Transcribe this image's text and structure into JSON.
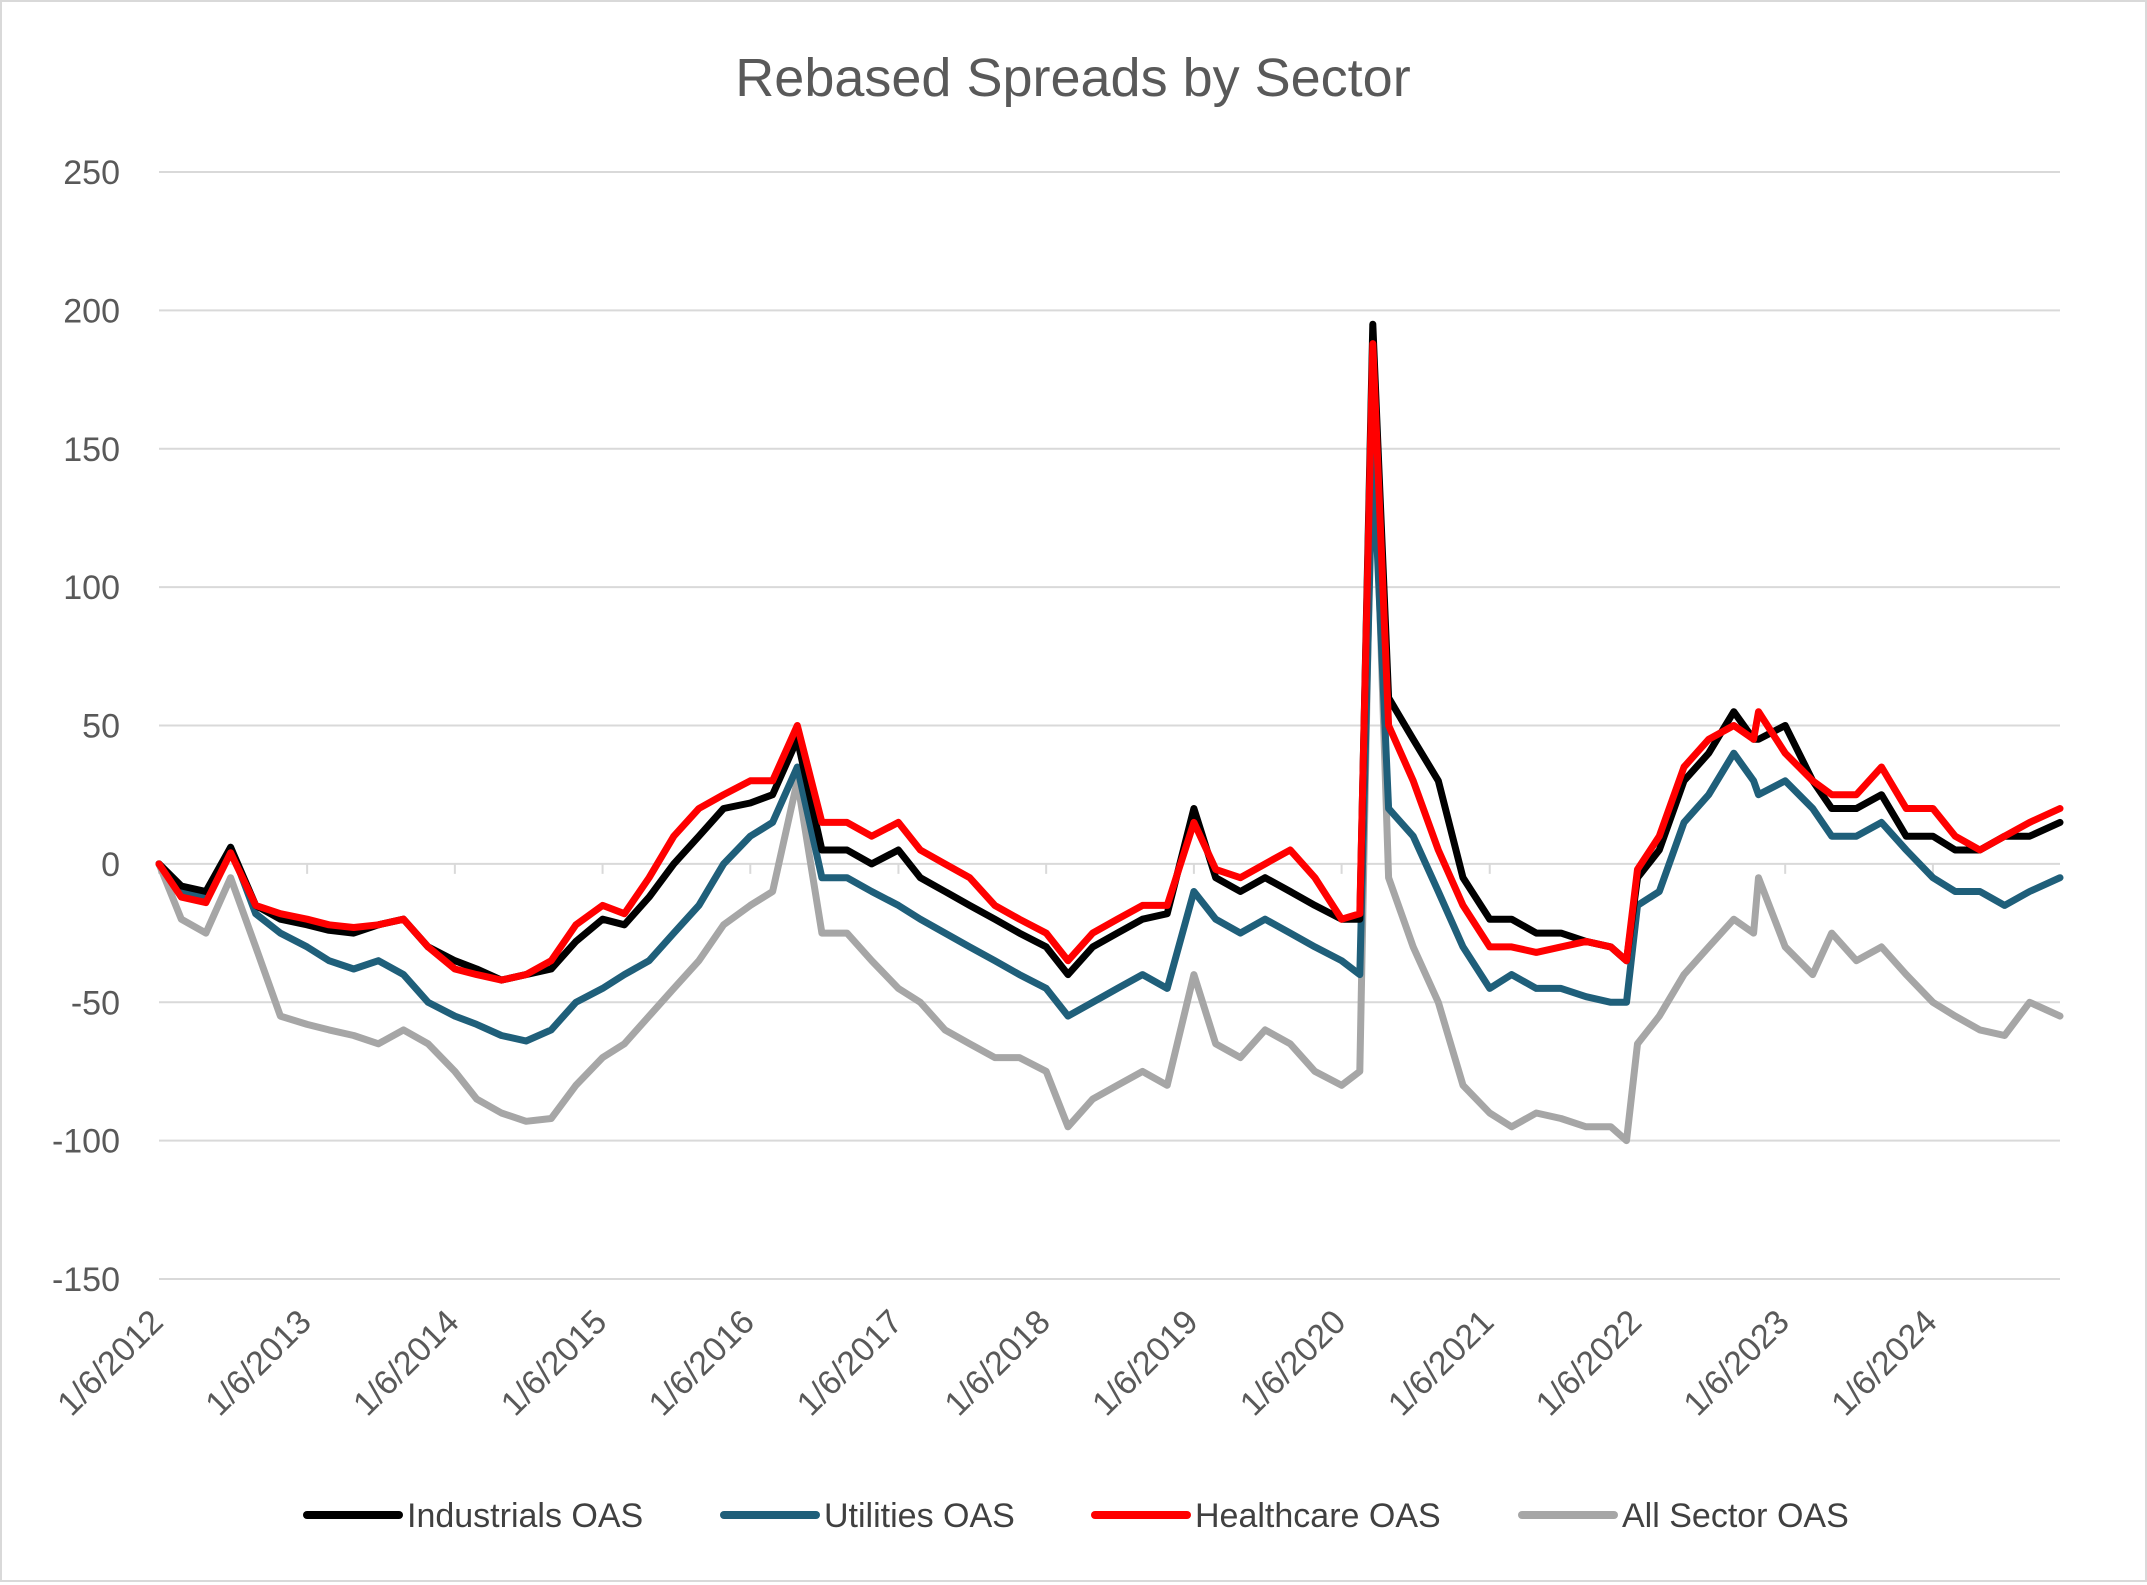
{
  "chart_data": {
    "type": "line",
    "title": "Rebased Spreads by Sector",
    "xlabel": "",
    "ylabel": "",
    "ylim": [
      -150,
      250
    ],
    "yticks": [
      250,
      200,
      150,
      100,
      50,
      0,
      -50,
      -100,
      -150
    ],
    "xlim": [
      "2012-01-06",
      "2024-11-15"
    ],
    "xticks": [
      "1/6/2012",
      "1/6/2013",
      "1/6/2014",
      "1/6/2015",
      "1/6/2016",
      "1/6/2017",
      "1/6/2018",
      "1/6/2019",
      "1/6/2020",
      "1/6/2021",
      "1/6/2022",
      "1/6/2023",
      "1/6/2024"
    ],
    "grid": true,
    "legend": "bottom",
    "x": [
      "2012-01-06",
      "2012-03-01",
      "2012-05-01",
      "2012-07-01",
      "2012-09-01",
      "2012-11-01",
      "2013-01-06",
      "2013-03-01",
      "2013-05-01",
      "2013-07-01",
      "2013-09-01",
      "2013-11-01",
      "2014-01-06",
      "2014-03-01",
      "2014-05-01",
      "2014-07-01",
      "2014-09-01",
      "2014-11-01",
      "2015-01-06",
      "2015-03-01",
      "2015-05-01",
      "2015-07-01",
      "2015-09-01",
      "2015-11-01",
      "2016-01-06",
      "2016-03-01",
      "2016-05-01",
      "2016-07-01",
      "2016-09-01",
      "2016-11-01",
      "2017-01-06",
      "2017-03-01",
      "2017-05-01",
      "2017-07-01",
      "2017-09-01",
      "2017-11-01",
      "2018-01-06",
      "2018-03-01",
      "2018-05-01",
      "2018-07-01",
      "2018-09-01",
      "2018-11-01",
      "2019-01-06",
      "2019-03-01",
      "2019-05-01",
      "2019-07-01",
      "2019-09-01",
      "2019-11-01",
      "2020-01-06",
      "2020-02-20",
      "2020-03-23",
      "2020-05-01",
      "2020-07-01",
      "2020-09-01",
      "2020-11-01",
      "2021-01-06",
      "2021-03-01",
      "2021-05-01",
      "2021-07-01",
      "2021-09-01",
      "2021-11-01",
      "2021-12-10",
      "2022-01-06",
      "2022-03-01",
      "2022-05-01",
      "2022-07-01",
      "2022-09-01",
      "2022-10-20",
      "2022-11-01",
      "2023-01-06",
      "2023-03-15",
      "2023-05-01",
      "2023-07-01",
      "2023-09-01",
      "2023-11-01",
      "2024-01-06",
      "2024-03-01",
      "2024-05-01",
      "2024-07-01",
      "2024-09-01",
      "2024-11-15"
    ],
    "series": [
      {
        "name": "Industrials OAS",
        "color": "#000000",
        "values": [
          0,
          -8,
          -10,
          6,
          -15,
          -20,
          -22,
          -24,
          -25,
          -22,
          -20,
          -30,
          -35,
          -38,
          -42,
          -40,
          -38,
          -28,
          -20,
          -22,
          -12,
          0,
          10,
          20,
          22,
          25,
          45,
          5,
          5,
          0,
          5,
          -5,
          -10,
          -15,
          -20,
          -25,
          -30,
          -40,
          -30,
          -25,
          -20,
          -18,
          20,
          -5,
          -10,
          -5,
          -10,
          -15,
          -20,
          -20,
          195,
          60,
          45,
          30,
          -5,
          -20,
          -20,
          -25,
          -25,
          -28,
          -30,
          -35,
          -5,
          5,
          30,
          40,
          55,
          45,
          45,
          50,
          30,
          20,
          20,
          25,
          10,
          10,
          5,
          5,
          10,
          10,
          15
        ]
      },
      {
        "name": "Utilities OAS",
        "color": "#1f5f7a",
        "values": [
          0,
          -10,
          -12,
          6,
          -18,
          -25,
          -30,
          -35,
          -38,
          -35,
          -40,
          -50,
          -55,
          -58,
          -62,
          -64,
          -60,
          -50,
          -45,
          -40,
          -35,
          -25,
          -15,
          0,
          10,
          15,
          35,
          -5,
          -5,
          -10,
          -15,
          -20,
          -25,
          -30,
          -35,
          -40,
          -45,
          -55,
          -50,
          -45,
          -40,
          -45,
          -10,
          -20,
          -25,
          -20,
          -25,
          -30,
          -35,
          -40,
          150,
          20,
          10,
          -10,
          -30,
          -45,
          -40,
          -45,
          -45,
          -48,
          -50,
          -50,
          -15,
          -10,
          15,
          25,
          40,
          30,
          25,
          30,
          20,
          10,
          10,
          15,
          5,
          -5,
          -10,
          -10,
          -15,
          -10,
          -5
        ]
      },
      {
        "name": "Healthcare OAS",
        "color": "#ff0000",
        "values": [
          0,
          -12,
          -14,
          4,
          -15,
          -18,
          -20,
          -22,
          -23,
          -22,
          -20,
          -30,
          -38,
          -40,
          -42,
          -40,
          -35,
          -22,
          -15,
          -18,
          -5,
          10,
          20,
          25,
          30,
          30,
          50,
          15,
          15,
          10,
          15,
          5,
          0,
          -5,
          -15,
          -20,
          -25,
          -35,
          -25,
          -20,
          -15,
          -15,
          15,
          -2,
          -5,
          0,
          5,
          -5,
          -20,
          -18,
          188,
          50,
          30,
          5,
          -15,
          -30,
          -30,
          -32,
          -30,
          -28,
          -30,
          -35,
          -2,
          10,
          35,
          45,
          50,
          45,
          55,
          40,
          30,
          25,
          25,
          35,
          20,
          20,
          10,
          5,
          10,
          15,
          20
        ]
      },
      {
        "name": "All Sector OAS",
        "color": "#a6a6a6",
        "values": [
          0,
          -20,
          -25,
          -5,
          -30,
          -55,
          -58,
          -60,
          -62,
          -65,
          -60,
          -65,
          -75,
          -85,
          -90,
          -93,
          -92,
          -80,
          -70,
          -65,
          -55,
          -45,
          -35,
          -22,
          -15,
          -10,
          30,
          -25,
          -25,
          -35,
          -45,
          -50,
          -60,
          -65,
          -70,
          -70,
          -75,
          -95,
          -85,
          -80,
          -75,
          -80,
          -40,
          -65,
          -70,
          -60,
          -65,
          -75,
          -80,
          -75,
          170,
          -5,
          -30,
          -50,
          -80,
          -90,
          -95,
          -90,
          -92,
          -95,
          -95,
          -100,
          -65,
          -55,
          -40,
          -30,
          -20,
          -25,
          -5,
          -30,
          -40,
          -25,
          -35,
          -30,
          -40,
          -50,
          -55,
          -60,
          -62,
          -50,
          -55
        ]
      }
    ]
  }
}
